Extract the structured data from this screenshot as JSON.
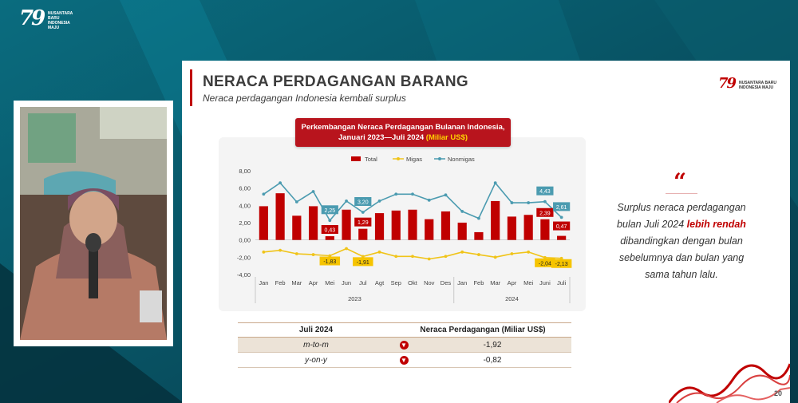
{
  "top_logo": {
    "number": "79",
    "lines": [
      "NUSANTARA",
      "BARU",
      "INDONESIA",
      "MAJU"
    ]
  },
  "slide": {
    "title": "NERACA PERDAGANGAN BARANG",
    "subtitle": "Neraca perdagangan Indonesia kembali surplus",
    "brand": {
      "number": "79",
      "line1": "NUSANTARA BARU",
      "line2": "INDONESIA MAJU"
    },
    "chart_header": {
      "line1": "Perkembangan Neraca Perdagangan Bulanan Indonesia,",
      "line2_prefix": "Januari 2023—Juli 2024 ",
      "line2_highlight": "(Miliar US$)"
    },
    "quote": {
      "mark": "“",
      "part1": "Surplus neraca perdagangan bulan Juli 2024 ",
      "highlight": "lebih rendah",
      "part2": " dibandingkan dengan bulan sebelumnya dan bulan yang sama tahun lalu."
    },
    "summary_table": {
      "headers": [
        "Juli 2024",
        "Neraca Perdagangan (Miliar US$)"
      ],
      "rows": [
        {
          "label": "m-to-m",
          "value": "-1,92",
          "trend": "down"
        },
        {
          "label": "y-on-y",
          "value": "-0,82",
          "trend": "down"
        }
      ]
    },
    "page_number": "20"
  },
  "colors": {
    "total": "#c00000",
    "migas": "#f0c419",
    "nonmigas": "#4b9bb0",
    "accent": "#c00000"
  },
  "chart_data": {
    "type": "bar",
    "categories": [
      "Jan",
      "Feb",
      "Mar",
      "Apr",
      "Mei",
      "Jun",
      "Jul",
      "Agt",
      "Sep",
      "Okt",
      "Nov",
      "Des",
      "Jan",
      "Feb",
      "Mar",
      "Apr",
      "Mei",
      "Juni",
      "Juli"
    ],
    "year_labels": [
      {
        "label": "2023",
        "from": 0,
        "to": 11
      },
      {
        "label": "2024",
        "from": 12,
        "to": 18
      }
    ],
    "ylim": [
      -4,
      8
    ],
    "yticks": [
      "-4,00",
      "-2,00",
      "0,00",
      "2,00",
      "4,00",
      "6,00",
      "8,00"
    ],
    "series": [
      {
        "name": "Total",
        "kind": "bar",
        "values": [
          3.9,
          5.4,
          2.8,
          3.9,
          0.43,
          3.5,
          1.29,
          3.1,
          3.4,
          3.5,
          2.4,
          3.3,
          2.0,
          0.9,
          4.5,
          2.7,
          2.9,
          2.39,
          0.47
        ]
      },
      {
        "name": "Migas",
        "kind": "line",
        "values": [
          -1.4,
          -1.2,
          -1.6,
          -1.7,
          -1.83,
          -1.0,
          -1.91,
          -1.4,
          -1.9,
          -1.9,
          -2.2,
          -1.9,
          -1.4,
          -1.7,
          -2.0,
          -1.6,
          -1.4,
          -2.04,
          -2.13
        ]
      },
      {
        "name": "Nonmigas",
        "kind": "line",
        "values": [
          5.3,
          6.6,
          4.4,
          5.6,
          2.25,
          4.5,
          3.2,
          4.5,
          5.3,
          5.3,
          4.6,
          5.2,
          3.3,
          2.5,
          6.6,
          4.3,
          4.3,
          4.43,
          2.61
        ]
      }
    ],
    "data_labels": [
      {
        "series": "Total",
        "index": 4,
        "text": "0,43"
      },
      {
        "series": "Total",
        "index": 6,
        "text": "1,29"
      },
      {
        "series": "Total",
        "index": 17,
        "text": "2,39"
      },
      {
        "series": "Total",
        "index": 18,
        "text": "0,47"
      },
      {
        "series": "Nonmigas",
        "index": 4,
        "text": "2,25"
      },
      {
        "series": "Nonmigas",
        "index": 6,
        "text": "3,20"
      },
      {
        "series": "Nonmigas",
        "index": 17,
        "text": "4,43"
      },
      {
        "series": "Nonmigas",
        "index": 18,
        "text": "2,61"
      },
      {
        "series": "Migas",
        "index": 4,
        "text": "-1,83"
      },
      {
        "series": "Migas",
        "index": 6,
        "text": "-1,91"
      },
      {
        "series": "Migas",
        "index": 17,
        "text": "-2,04"
      },
      {
        "series": "Migas",
        "index": 18,
        "text": "-2,13"
      }
    ],
    "legend_placement": "top",
    "grid": false
  }
}
